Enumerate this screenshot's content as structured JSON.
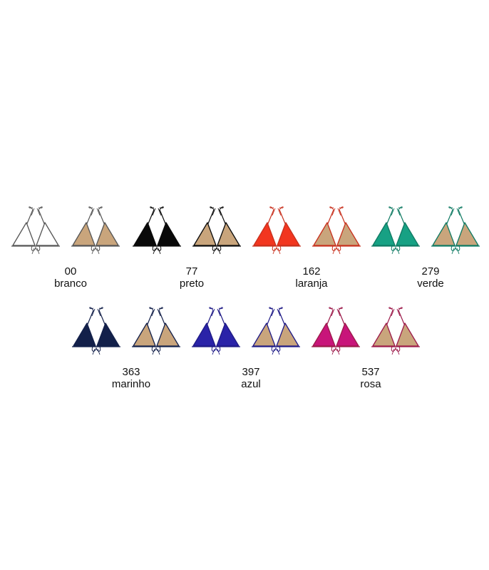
{
  "lining_color": "#c9a57c",
  "colors": [
    {
      "code": "00",
      "name": "branco",
      "fill": "#ffffff",
      "trim": "#555555"
    },
    {
      "code": "77",
      "name": "preto",
      "fill": "#0a0a0a",
      "trim": "#0a0a0a"
    },
    {
      "code": "162",
      "name": "laranja",
      "fill": "#f2361f",
      "trim": "#c8301d"
    },
    {
      "code": "279",
      "name": "verde",
      "fill": "#17a184",
      "trim": "#0f7a63"
    },
    {
      "code": "363",
      "name": "marinho",
      "fill": "#13204a",
      "trim": "#13204a"
    },
    {
      "code": "397",
      "name": "azul",
      "fill": "#2a23a8",
      "trim": "#1e1a86"
    },
    {
      "code": "537",
      "name": "rosa",
      "fill": "#c8157a",
      "trim": "#9c1a4a"
    }
  ]
}
